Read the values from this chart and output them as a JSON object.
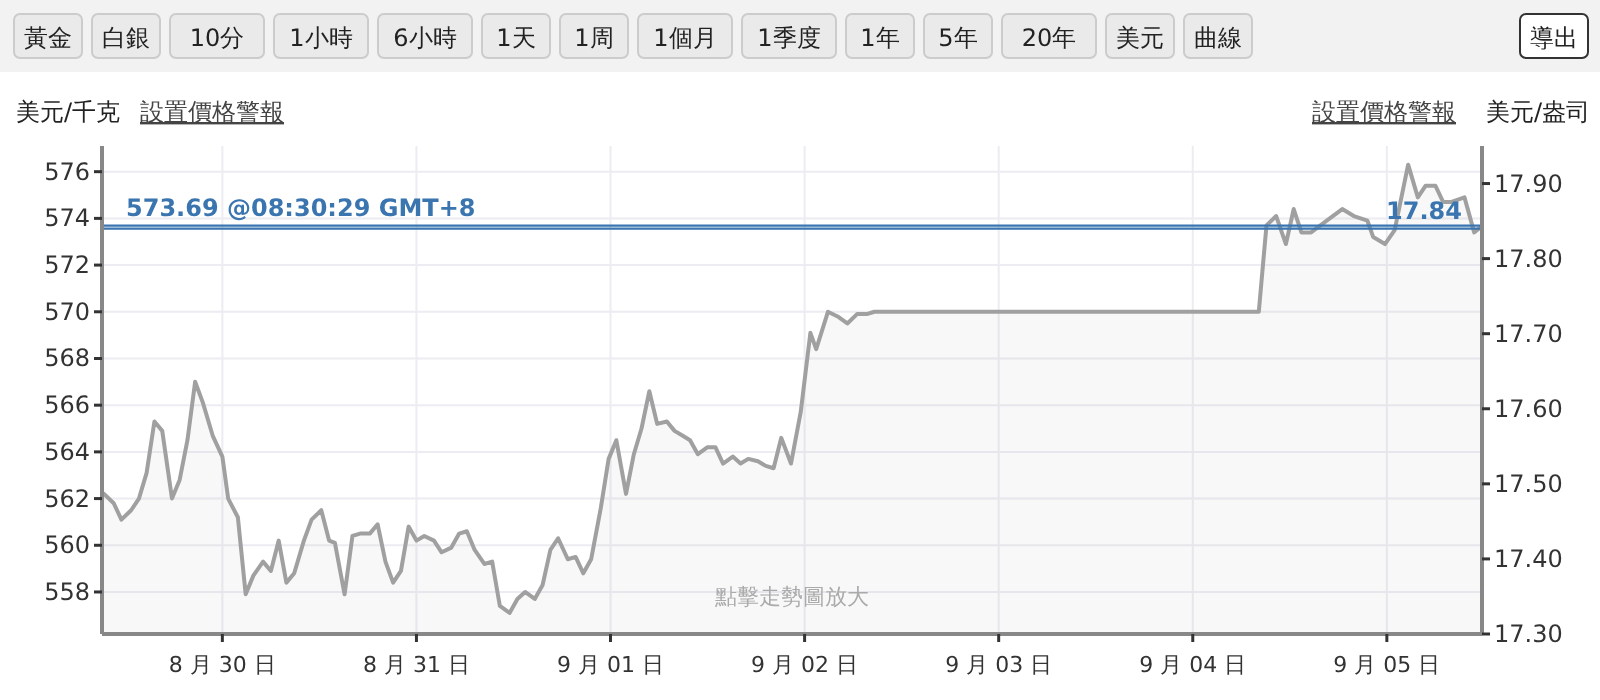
{
  "chart_data": [
    {
      "type": "other",
      "annotations": [
        "黃金",
        "白銀",
        "10分",
        "1小時",
        "6小時",
        "1天",
        "1周",
        "1個月",
        "1季度",
        "1年",
        "5年",
        "20年",
        "美元",
        "曲線",
        "導出"
      ]
    },
    {
      "type": "area",
      "ylabel": "美元/千克",
      "y2label": "美元/盎司",
      "annotations": [
        "設置價格警報",
        "設置價格警報",
        "點擊走勢圖放大"
      ],
      "x": [
        "--08-29T09:22",
        "--08-29T10:34",
        "--08-29T11:31",
        "--08-29T12:43",
        "--08-29T13:41",
        "--08-29T14:38",
        "--08-29T15:36",
        "--08-29T16:34",
        "--08-29T17:46",
        "--08-29T18:43",
        "--08-29T19:41",
        "--08-29T20:38",
        "--08-29T21:36",
        "--08-29T22:48",
        "--08-30T00:00",
        "--08-30T00:43",
        "--08-30T01:55",
        "--08-30T02:53",
        "--08-30T03:50",
        "--08-30T05:02",
        "--08-30T06:00",
        "--08-30T06:58",
        "--08-30T07:55",
        "--08-30T08:53",
        "--08-30T10:05",
        "--08-30T11:02",
        "--08-30T12:14",
        "--08-30T13:12",
        "--08-30T13:55",
        "--08-30T15:07",
        "--08-30T16:05",
        "--08-30T17:02",
        "--08-30T18:14",
        "--08-30T19:12",
        "--08-30T20:10",
        "--08-30T21:07",
        "--08-30T22:05",
        "--08-30T23:02",
        "--08-31T00:00",
        "--08-31T00:58",
        "--08-31T02:10",
        "--08-31T03:07",
        "--08-31T04:19",
        "--08-31T05:17",
        "--08-31T06:14",
        "--08-31T07:12",
        "--08-31T08:24",
        "--08-31T09:22",
        "--08-31T10:19",
        "--08-31T11:31",
        "--08-31T12:29",
        "--08-31T13:26",
        "--08-31T14:38",
        "--08-31T15:36",
        "--08-31T16:34",
        "--08-31T17:31",
        "--08-31T18:43",
        "--08-31T19:41",
        "--08-31T20:38",
        "--08-31T21:36",
        "--08-31T22:48",
        "--08-31T23:46",
        "--09-01T00:43",
        "--09-01T01:55",
        "--09-01T02:53",
        "--09-01T03:50",
        "--09-01T04:48",
        "--09-01T05:46",
        "--09-01T06:58",
        "--09-01T07:55",
        "--09-01T08:53",
        "--09-01T09:50",
        "--09-01T10:48",
        "--09-01T12:00",
        "--09-01T12:58",
        "--09-01T13:55",
        "--09-01T15:07",
        "--09-01T16:05",
        "--09-01T17:02",
        "--09-01T18:14",
        "--09-01T19:12",
        "--09-01T20:10",
        "--09-01T21:07",
        "--09-01T22:19",
        "--09-01T23:31",
        "--09-02T00:43",
        "--09-02T01:26",
        "--09-02T02:53",
        "--09-02T04:05",
        "--09-02T05:17",
        "--09-02T06:29",
        "--09-02T07:41",
        "--09-02T08:38",
        "--09-04T08:10",
        "--09-04T09:07",
        "--09-04T10:19",
        "--09-04T11:31",
        "--09-04T12:29",
        "--09-04T13:26",
        "--09-04T14:38",
        "--09-04T16:34",
        "--09-04T18:29",
        "--09-04T19:55",
        "--09-04T21:36",
        "--09-04T22:19",
        "--09-04T23:46",
        "--09-05T00:58",
        "--09-05T02:38",
        "--09-05T03:50",
        "--09-05T04:48",
        "--09-05T06:00",
        "--09-05T06:58",
        "--09-05T07:55",
        "--09-05T09:36",
        "--09-05T10:48",
        "--09-05T11:31"
      ],
      "series": [
        {
          "color": "#a0a0a0",
          "values": [
            562.2,
            561.8,
            561.1,
            561.5,
            562.0,
            563.1,
            565.3,
            564.9,
            562.0,
            562.8,
            564.5,
            567.0,
            566.1,
            564.7,
            563.8,
            562.0,
            561.2,
            557.9,
            558.7,
            559.3,
            558.9,
            560.2,
            558.4,
            558.8,
            560.2,
            561.1,
            561.5,
            560.2,
            560.1,
            557.9,
            560.4,
            560.5,
            560.5,
            560.9,
            559.3,
            558.4,
            558.9,
            560.8,
            560.2,
            560.4,
            560.2,
            559.7,
            559.9,
            560.5,
            560.6,
            559.8,
            559.2,
            559.3,
            557.4,
            557.1,
            557.7,
            558.0,
            557.7,
            558.3,
            559.8,
            560.3,
            559.4,
            559.5,
            558.8,
            559.4,
            561.6,
            563.7,
            564.5,
            562.2,
            563.9,
            565.0,
            566.6,
            565.2,
            565.3,
            564.9,
            564.7,
            564.5,
            563.9,
            564.2,
            564.2,
            563.5,
            563.8,
            563.5,
            563.7,
            563.6,
            563.4,
            563.3,
            564.6,
            563.5,
            565.7,
            569.1,
            568.4,
            570.0,
            569.8,
            569.5,
            569.9,
            569.9,
            570.0,
            570.0,
            573.7,
            574.1,
            572.9,
            574.4,
            573.4,
            573.4,
            573.9,
            574.4,
            574.1,
            573.9,
            573.2,
            572.9,
            573.5,
            576.3,
            574.9,
            575.4,
            575.4,
            574.7,
            574.7,
            574.9,
            573.4,
            573.6
          ]
        }
      ],
      "xlim": [
        "--08-29T09:07",
        "--09-05T11:46"
      ],
      "xticks": [
        {
          "value": "--08-30",
          "label": "8 月 30 日"
        },
        {
          "value": "--08-31",
          "label": "8 月 31 日"
        },
        {
          "value": "--09-01",
          "label": "9 月 01 日"
        },
        {
          "value": "--09-02",
          "label": "9 月 02 日"
        },
        {
          "value": "--09-03",
          "label": "9 月 03 日"
        },
        {
          "value": "--09-04",
          "label": "9 月 04 日"
        },
        {
          "value": "--09-05",
          "label": "9 月 05 日"
        }
      ],
      "ylim": [
        556.2,
        577.1
      ],
      "yticks": [
        558,
        560,
        562,
        564,
        566,
        568,
        570,
        572,
        574,
        576
      ],
      "y2lim": [
        17.3,
        17.95
      ],
      "y2ticks": [
        {
          "value": 17.3,
          "label": "17.30"
        },
        {
          "value": 17.4,
          "label": "17.40"
        },
        {
          "value": 17.5,
          "label": "17.50"
        },
        {
          "value": 17.6,
          "label": "17.60"
        },
        {
          "value": 17.7,
          "label": "17.70"
        },
        {
          "value": 17.8,
          "label": "17.80"
        },
        {
          "value": 17.9,
          "label": "17.90"
        }
      ],
      "ref_lines": [
        {
          "axis": "y",
          "value": 573.69,
          "label": "573.69 @08:30:29 GMT+8",
          "color": "#3a75b0"
        },
        {
          "axis": "y2",
          "value": 17.84,
          "label": "17.84",
          "color": "#3a75b0"
        }
      ],
      "grid": true
    }
  ]
}
